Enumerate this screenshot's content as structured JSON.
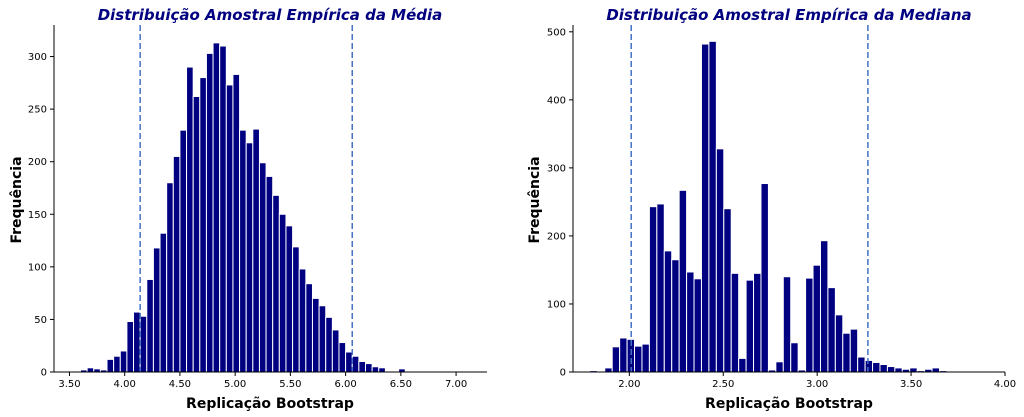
{
  "colors": {
    "bar": "#000080",
    "bar_edge": "#ffffff",
    "vline": "#4472c4",
    "axis": "#000000"
  },
  "chart_data": [
    {
      "type": "bar",
      "title": "Distribuição Amostral Empírica da Média",
      "xlabel": "Replicação Bootstrap",
      "ylabel": "Frequência",
      "xlim": [
        3.36,
        7.28
      ],
      "ylim": [
        0,
        330
      ],
      "xticks": [
        "3.50",
        "4.00",
        "4.50",
        "5.00",
        "5.50",
        "6.00",
        "6.50",
        "7.00"
      ],
      "yticks": [
        "0",
        "50",
        "100",
        "150",
        "200",
        "250",
        "300"
      ],
      "bin_start": 3.6,
      "bin_width": 0.06,
      "values": [
        2,
        4,
        3,
        2,
        12,
        15,
        20,
        48,
        57,
        53,
        88,
        118,
        132,
        180,
        205,
        230,
        290,
        262,
        280,
        303,
        313,
        310,
        273,
        283,
        230,
        218,
        231,
        199,
        186,
        168,
        150,
        139,
        119,
        98,
        84,
        70,
        63,
        52,
        40,
        28,
        19,
        15,
        10,
        8,
        5,
        4,
        0,
        0,
        3
      ],
      "vlines": [
        4.14,
        6.06
      ],
      "grid": false
    },
    {
      "type": "bar",
      "title": "Distribuição Amostral Empírica da Mediana",
      "xlabel": "Replicação Bootstrap",
      "ylabel": "Frequência",
      "xlim": [
        1.7,
        4.0
      ],
      "ylim": [
        0,
        510
      ],
      "xticks": [
        "2.00",
        "2.50",
        "3.00",
        "3.50",
        "4.00"
      ],
      "yticks": [
        "0",
        "100",
        "200",
        "300",
        "400",
        "500"
      ],
      "bin_start": 1.79,
      "bin_width": 0.0396,
      "values": [
        2,
        0,
        6,
        37,
        50,
        48,
        38,
        41,
        243,
        247,
        178,
        165,
        267,
        147,
        137,
        482,
        486,
        328,
        240,
        145,
        20,
        135,
        145,
        277,
        3,
        15,
        140,
        43,
        3,
        138,
        157,
        193,
        124,
        84,
        57,
        63,
        22,
        17,
        14,
        11,
        8,
        6,
        4,
        6,
        2,
        4,
        6,
        2,
        1,
        1,
        0,
        0,
        0,
        0,
        0,
        0
      ],
      "vlines": [
        2.01,
        3.27
      ],
      "grid": false
    }
  ]
}
